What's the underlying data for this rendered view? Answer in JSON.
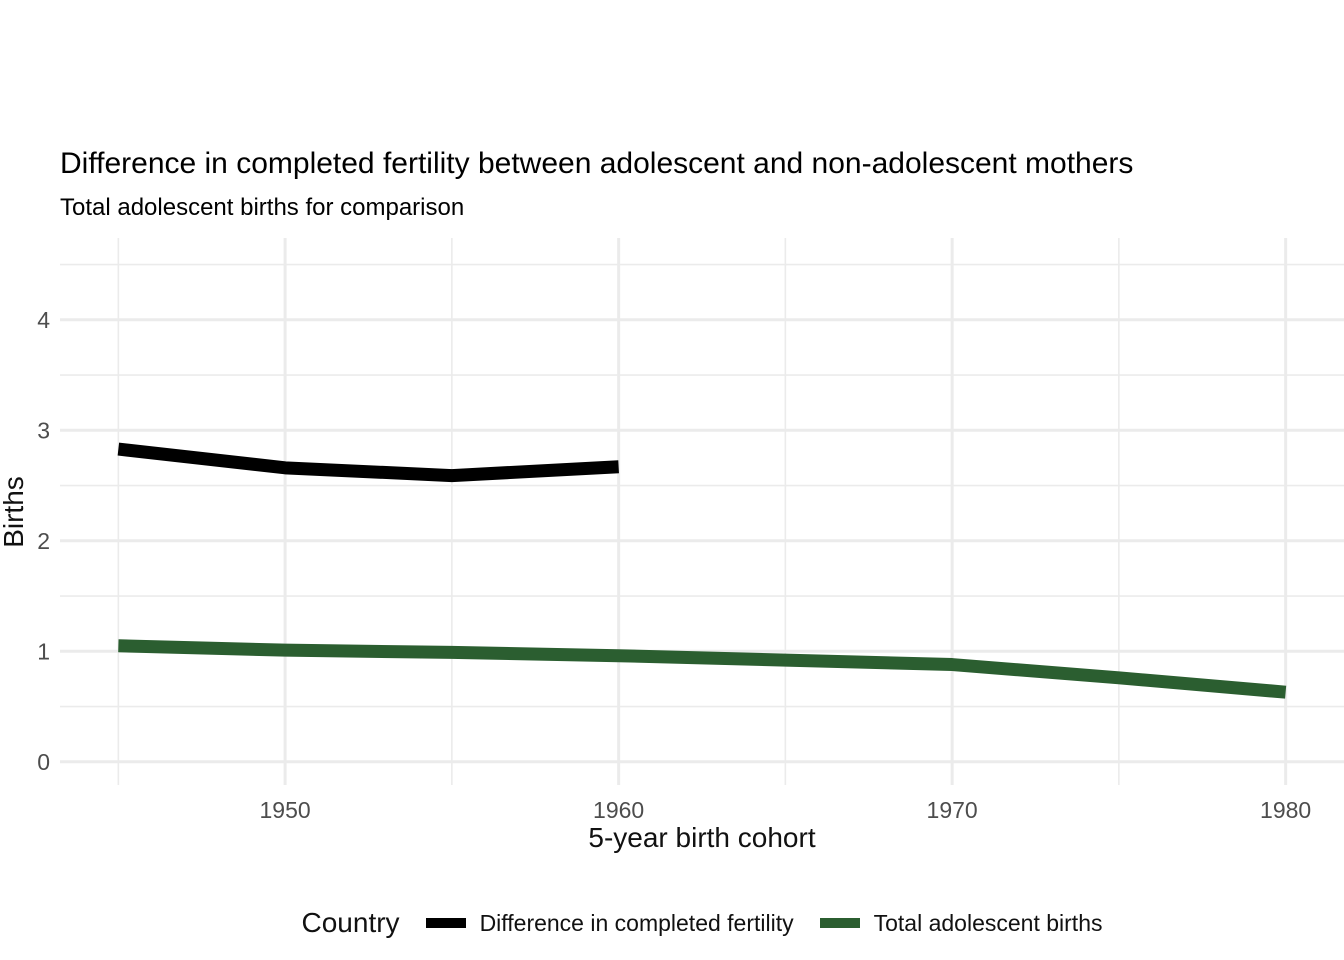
{
  "title": "Difference in completed fertility between adolescent and non-adolescent mothers",
  "subtitle": "Total adolescent births for comparison",
  "axes": {
    "x_label": "5-year birth cohort",
    "y_label": "Births"
  },
  "legend": {
    "title": "Country",
    "items": [
      {
        "label": "Difference in completed fertility",
        "color": "#000000"
      },
      {
        "label": "Total adolescent births",
        "color": "#2b5e30"
      }
    ]
  },
  "chart_data": {
    "type": "line",
    "title": "Difference in completed fertility between adolescent and non-adolescent mothers",
    "subtitle": "Total adolescent births for comparison",
    "xlabel": "5-year birth cohort",
    "ylabel": "Births",
    "x_range": [
      1943.25,
      1981.75
    ],
    "y_range": [
      -0.21,
      4.74
    ],
    "x_ticks": [
      1950,
      1960,
      1970,
      1980
    ],
    "x_minor": [
      1945,
      1955,
      1965,
      1975
    ],
    "y_ticks": [
      0,
      1,
      2,
      3,
      4
    ],
    "y_minor": [
      0.5,
      1.5,
      2.5,
      3.5,
      4.5
    ],
    "grid": true,
    "grid_color": "#ebebeb",
    "tick_label_color": "#4d4d4d",
    "legend_position": "bottom",
    "series": [
      {
        "name": "Difference in completed fertility",
        "color": "#000000",
        "x": [
          1945,
          1950,
          1955,
          1960
        ],
        "y": [
          2.83,
          2.66,
          2.59,
          2.67
        ]
      },
      {
        "name": "Total adolescent births",
        "color": "#2b5e30",
        "x": [
          1945,
          1950,
          1955,
          1960,
          1965,
          1970,
          1975,
          1980
        ],
        "y": [
          1.05,
          1.01,
          0.99,
          0.96,
          0.92,
          0.88,
          0.76,
          0.63
        ]
      }
    ]
  }
}
